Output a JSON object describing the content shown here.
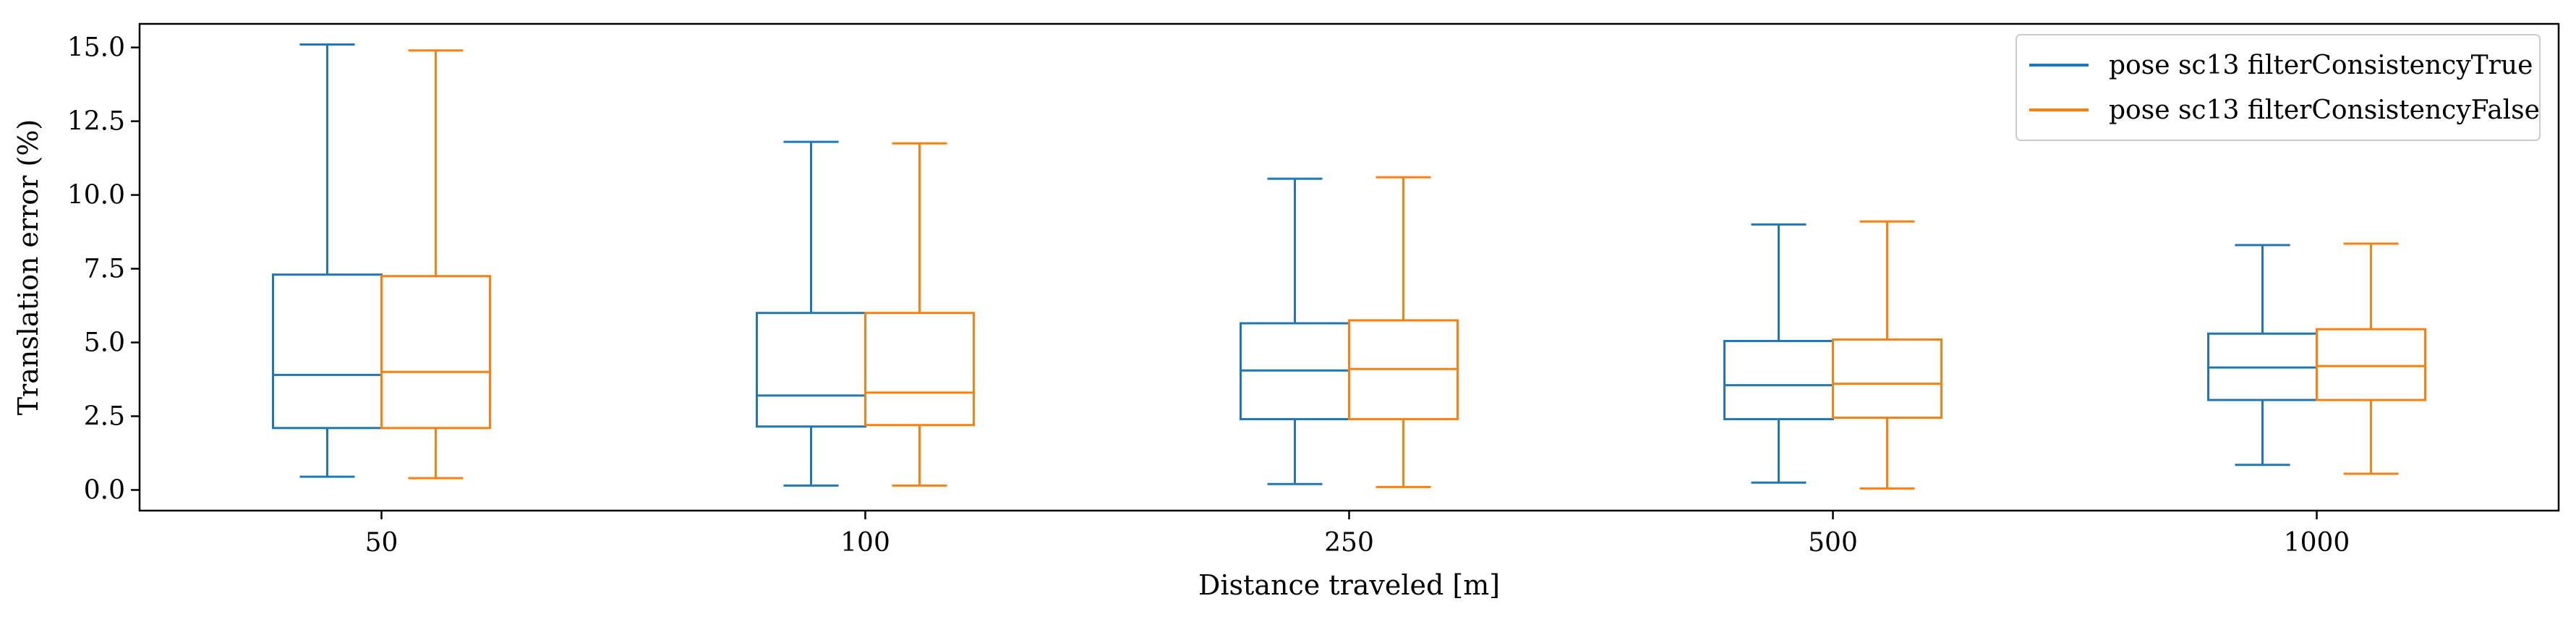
{
  "chart_data": {
    "type": "box",
    "xlabel": "Distance traveled [m]",
    "ylabel": "Translation error (%)",
    "categories": [
      "50",
      "100",
      "250",
      "500",
      "1000"
    ],
    "ylim": [
      -0.7,
      15.8
    ],
    "yticks": [
      0.0,
      2.5,
      5.0,
      7.5,
      10.0,
      12.5,
      15.0
    ],
    "ytick_labels": [
      "0.0",
      "2.5",
      "5.0",
      "7.5",
      "10.0",
      "12.5",
      "15.0"
    ],
    "grid": false,
    "legend_position": "top-right",
    "series": [
      {
        "name": "pose sc13 filterConsistencyTrue",
        "color": "#1f77b4",
        "boxes": [
          {
            "min": 0.45,
            "q1": 2.1,
            "median": 3.9,
            "q3": 7.3,
            "max": 15.1
          },
          {
            "min": 0.15,
            "q1": 2.15,
            "median": 3.2,
            "q3": 6.0,
            "max": 11.8
          },
          {
            "min": 0.2,
            "q1": 2.4,
            "median": 4.05,
            "q3": 5.65,
            "max": 10.55
          },
          {
            "min": 0.25,
            "q1": 2.4,
            "median": 3.55,
            "q3": 5.05,
            "max": 9.0
          },
          {
            "min": 0.85,
            "q1": 3.05,
            "median": 4.15,
            "q3": 5.3,
            "max": 8.3
          }
        ]
      },
      {
        "name": "pose sc13 filterConsistencyFalse",
        "color": "#ff7f0e",
        "boxes": [
          {
            "min": 0.4,
            "q1": 2.1,
            "median": 4.0,
            "q3": 7.25,
            "max": 14.9
          },
          {
            "min": 0.15,
            "q1": 2.2,
            "median": 3.3,
            "q3": 6.0,
            "max": 11.75
          },
          {
            "min": 0.1,
            "q1": 2.4,
            "median": 4.1,
            "q3": 5.75,
            "max": 10.6
          },
          {
            "min": 0.05,
            "q1": 2.45,
            "median": 3.6,
            "q3": 5.1,
            "max": 9.1
          },
          {
            "min": 0.55,
            "q1": 3.05,
            "median": 4.2,
            "q3": 5.45,
            "max": 8.35
          }
        ]
      }
    ]
  }
}
